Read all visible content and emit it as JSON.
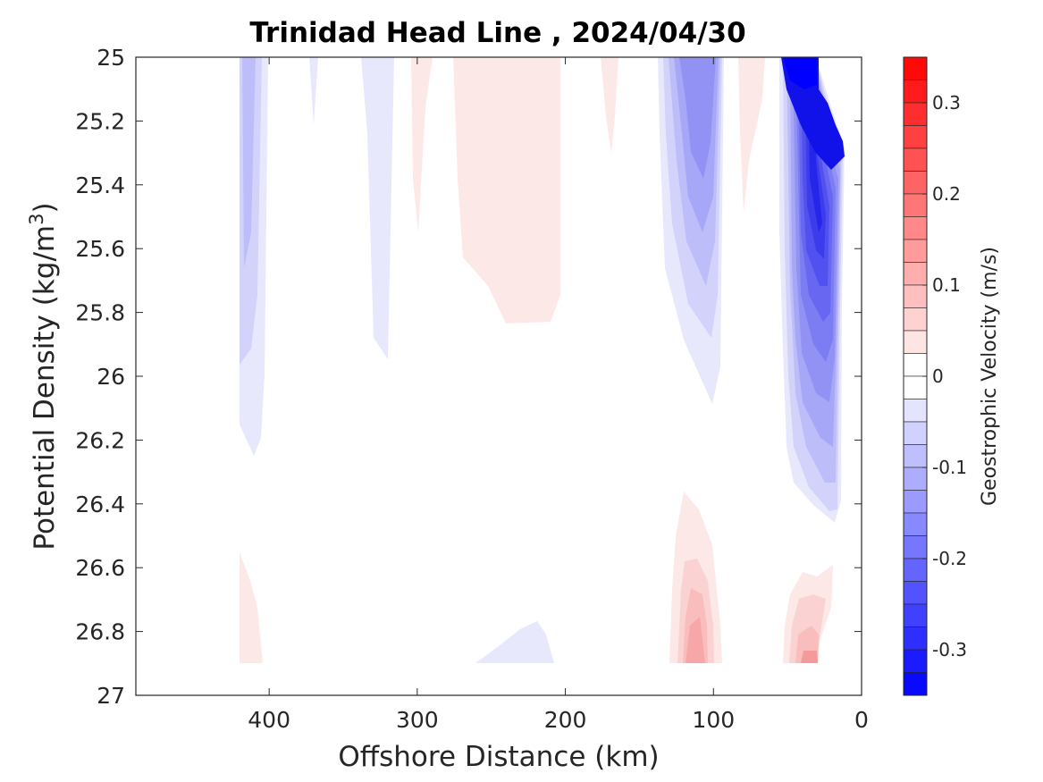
{
  "chart_data": {
    "type": "contour",
    "title": "Trinidad Head Line , 2024/04/30",
    "xlabel": "Offshore Distance (km)",
    "ylabel_main": "Potential Density (kg/m",
    "ylabel_sup": "3",
    "ylabel_close": ")",
    "xlim": [
      490,
      0
    ],
    "ylim": [
      25,
      27
    ],
    "x_reversed": true,
    "y_reversed": true,
    "x_ticks": [
      400,
      300,
      200,
      100,
      0
    ],
    "x_tick_labels": [
      "400",
      "300",
      "200",
      "100",
      "0"
    ],
    "y_ticks": [
      25,
      25.2,
      25.4,
      25.6,
      25.8,
      26,
      26.2,
      26.4,
      26.6,
      26.8,
      27
    ],
    "y_tick_labels": [
      "25",
      "25.2",
      "25.4",
      "25.6",
      "25.8",
      "26",
      "26.2",
      "26.4",
      "26.6",
      "26.8",
      "27"
    ],
    "grid": false,
    "colorbar": {
      "label": "Geostrophic Velocity (m/s)",
      "range": [
        -0.35,
        0.35
      ],
      "step": 0.025,
      "ticks": [
        0.3,
        0.2,
        0.1,
        0,
        -0.1,
        -0.2,
        -0.3
      ],
      "tick_labels": [
        "0.3",
        "0.2",
        "0.1",
        "0",
        "-0.1",
        "-0.2",
        "-0.3"
      ],
      "colormap": "blue-white-red"
    },
    "features": [
      {
        "kind": "negative",
        "level": -0.025,
        "x_range": [
          421,
          405
        ],
        "y_range": [
          25.0,
          26.25
        ]
      },
      {
        "kind": "negative",
        "level": -0.05,
        "x_range": [
          421,
          410
        ],
        "y_range": [
          25.0,
          25.95
        ]
      },
      {
        "kind": "negative",
        "level": -0.025,
        "x_range": [
          372,
          366
        ],
        "y_range": [
          25.0,
          25.2
        ]
      },
      {
        "kind": "negative",
        "level": -0.025,
        "x_range": [
          339,
          318
        ],
        "y_range": [
          25.0,
          25.95
        ]
      },
      {
        "kind": "positive",
        "level": 0.025,
        "x_range": [
          302,
          288
        ],
        "y_range": [
          25.0,
          25.55
        ]
      },
      {
        "kind": "positive",
        "level": 0.025,
        "x_range": [
          275,
          203
        ],
        "y_range": [
          25.0,
          25.83
        ]
      },
      {
        "kind": "positive",
        "level": 0.025,
        "x_range": [
          175,
          165
        ],
        "y_range": [
          25.0,
          25.3
        ]
      },
      {
        "kind": "negative",
        "level": -0.12,
        "x_range": [
          135,
          92
        ],
        "y_range": [
          25.0,
          26.08
        ]
      },
      {
        "kind": "positive",
        "level": 0.025,
        "x_range": [
          82,
          65
        ],
        "y_range": [
          25.0,
          25.48
        ]
      },
      {
        "kind": "negative",
        "level": -0.35,
        "x_range": [
          55,
          15
        ],
        "y_range": [
          25.0,
          26.45
        ]
      },
      {
        "kind": "negative",
        "level": -0.025,
        "x_range": [
          260,
          208
        ],
        "y_range": [
          26.77,
          26.9
        ]
      },
      {
        "kind": "positive",
        "level": 0.025,
        "x_range": [
          421,
          405
        ],
        "y_range": [
          26.55,
          26.9
        ]
      },
      {
        "kind": "positive",
        "level": 0.1,
        "x_range": [
          130,
          93
        ],
        "y_range": [
          26.37,
          26.9
        ]
      },
      {
        "kind": "positive",
        "level": 0.1,
        "x_range": [
          55,
          20
        ],
        "y_range": [
          26.58,
          26.9
        ]
      }
    ]
  }
}
